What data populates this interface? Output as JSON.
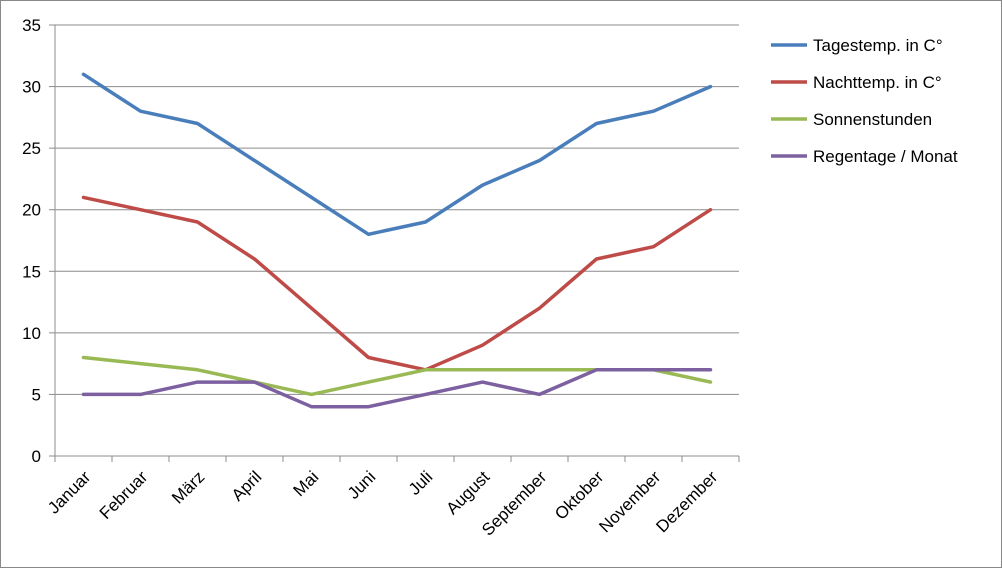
{
  "chart_data": {
    "type": "line",
    "categories": [
      "Januar",
      "Februar",
      "März",
      "April",
      "Mai",
      "Juni",
      "Juli",
      "August",
      "September",
      "Oktober",
      "November",
      "Dezember"
    ],
    "series": [
      {
        "name": "Tagestemp. in C°",
        "color": "#4a7ebb",
        "values": [
          31,
          28,
          27,
          24,
          21,
          18,
          19,
          22,
          24,
          27,
          28,
          30
        ]
      },
      {
        "name": "Nachttemp. in C°",
        "color": "#be4b48",
        "values": [
          21,
          20,
          19,
          16,
          12,
          8,
          7,
          9,
          12,
          16,
          17,
          20
        ]
      },
      {
        "name": "Sonnenstunden",
        "color": "#98b954",
        "values": [
          8,
          7.5,
          7,
          6,
          5,
          6,
          7,
          7,
          7,
          7,
          7,
          6
        ]
      },
      {
        "name": "Regentage / Monat",
        "color": "#7d60a0",
        "values": [
          5,
          5,
          6,
          6,
          4,
          4,
          5,
          6,
          5,
          7,
          7,
          7
        ]
      }
    ],
    "yticks": [
      0,
      5,
      10,
      15,
      20,
      25,
      30,
      35
    ],
    "ylim": [
      0,
      35
    ],
    "grid": true,
    "legend": "right"
  }
}
